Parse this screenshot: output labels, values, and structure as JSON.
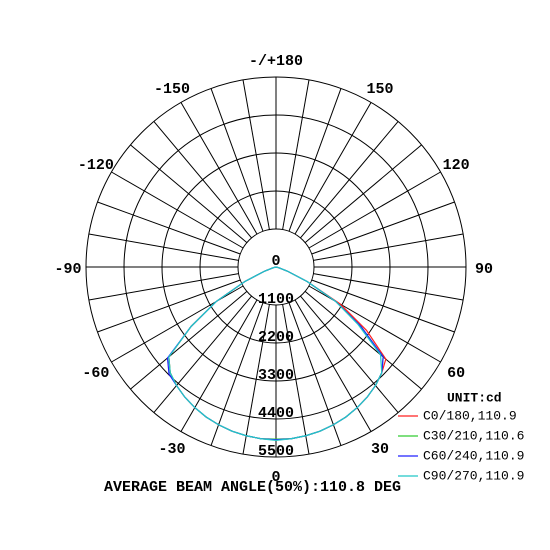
{
  "chart_data": {
    "type": "polar",
    "rlim": [
      0,
      5500
    ],
    "rticks": [
      0,
      1100,
      2200,
      3300,
      4400,
      5500
    ],
    "angle_ticks": [
      {
        "value": 180,
        "label": "-/+180"
      },
      150,
      120,
      90,
      60,
      30,
      0,
      -30,
      -60,
      -90,
      -120,
      -150
    ],
    "grid": true,
    "unit_label": "UNIT:cd",
    "footer": "AVERAGE BEAM ANGLE(50%):110.8 DEG",
    "angles": [
      -80,
      -75,
      -70,
      -65,
      -60,
      -55,
      -50,
      -45,
      -40,
      -35,
      -30,
      -25,
      -20,
      -15,
      -10,
      -5,
      0,
      5,
      10,
      15,
      20,
      25,
      30,
      35,
      40,
      45,
      50,
      55,
      60,
      65,
      70,
      75,
      80
    ],
    "series": [
      {
        "name": "C0/180,110.9",
        "color": "#ff2020",
        "values": [
          0,
          80,
          350,
          1000,
          2000,
          3000,
          4050,
          4330,
          4480,
          4600,
          4700,
          4790,
          4860,
          4920,
          4960,
          4990,
          5000,
          4990,
          4960,
          4920,
          4860,
          4790,
          4700,
          4600,
          4480,
          4330,
          4150,
          3200,
          2150,
          1000,
          350,
          80,
          0
        ]
      },
      {
        "name": "C30/210,110.6",
        "color": "#33cc33",
        "values": [
          0,
          80,
          350,
          1000,
          2000,
          3000,
          4050,
          4330,
          4480,
          4600,
          4700,
          4790,
          4860,
          4920,
          4960,
          4990,
          4980,
          4990,
          4960,
          4920,
          4860,
          4790,
          4700,
          4600,
          4480,
          4330,
          4050,
          3000,
          2000,
          1000,
          350,
          80,
          0
        ]
      },
      {
        "name": "C60/240,110.9",
        "color": "#2020ff",
        "values": [
          0,
          80,
          350,
          1000,
          2000,
          3000,
          4100,
          4380,
          4480,
          4600,
          4700,
          4790,
          4860,
          4920,
          4960,
          4990,
          5000,
          4990,
          4960,
          4920,
          4860,
          4790,
          4700,
          4600,
          4480,
          4330,
          4050,
          3000,
          2000,
          1000,
          350,
          80,
          0
        ]
      },
      {
        "name": "C90/270,110.9",
        "color": "#20c8c8",
        "values": [
          0,
          80,
          350,
          1000,
          2000,
          3000,
          4050,
          4330,
          4480,
          4600,
          4700,
          4790,
          4860,
          4920,
          4960,
          4990,
          5020,
          4990,
          4960,
          4920,
          4860,
          4790,
          4700,
          4600,
          4480,
          4330,
          3950,
          2900,
          2000,
          1000,
          350,
          80,
          0
        ]
      }
    ]
  }
}
